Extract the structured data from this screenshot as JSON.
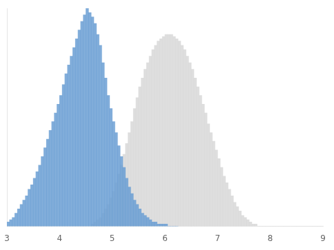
{
  "chart_data": {
    "type": "histogram",
    "series": [
      {
        "color": "#d8d8d8",
        "bins": [
          3,
          3.05,
          3.1,
          3.15,
          3.2,
          3.25,
          3.3,
          3.35,
          3.4,
          3.45,
          3.5,
          3.55,
          3.6,
          3.65,
          3.7,
          3.75,
          3.8,
          3.85,
          3.9,
          3.95,
          4,
          4.05,
          4.1,
          4.15,
          4.2,
          4.25,
          4.3,
          4.35,
          4.4,
          4.45,
          4.5,
          4.55,
          4.6,
          4.65,
          4.7,
          4.75,
          4.8,
          4.85,
          4.9,
          4.95,
          5,
          5.05,
          5.1,
          5.15,
          5.2,
          5.25,
          5.3,
          5.35,
          5.4,
          5.45,
          5.5,
          5.55,
          5.6,
          5.65,
          5.7,
          5.75,
          5.8,
          5.85,
          5.9,
          5.95,
          6,
          6.05,
          6.1,
          6.15,
          6.2,
          6.25,
          6.3,
          6.35,
          6.4,
          6.45,
          6.5,
          6.55,
          6.6,
          6.65,
          6.7,
          6.75,
          6.8,
          6.85,
          6.9,
          6.95,
          7,
          7.05,
          7.1,
          7.15,
          7.2,
          7.25,
          7.3,
          7.35,
          7.4,
          7.45,
          7.5,
          7.55,
          7.6,
          7.65,
          7.7,
          7.75,
          7.8,
          7.85,
          7.9,
          7.95,
          8,
          8.05,
          8.1,
          8.15,
          8.2,
          8.25,
          8.3,
          8.35,
          8.4,
          8.45,
          8.5,
          8.55,
          8.6,
          8.65,
          8.7,
          8.75,
          8.8,
          8.85,
          8.9,
          8.95,
          9
        ],
        "values": [
          0,
          0,
          0,
          0,
          0,
          0,
          0,
          0,
          0,
          0,
          0,
          0,
          0,
          0,
          0,
          0,
          0,
          0,
          0,
          0,
          0,
          0,
          0,
          0,
          0,
          0,
          0,
          0,
          0,
          0,
          0,
          0,
          1,
          2,
          3,
          4,
          6,
          8,
          10,
          13,
          16,
          20,
          24,
          28,
          33,
          38,
          43,
          48,
          54,
          59,
          64,
          68,
          72,
          75,
          78,
          81,
          83,
          85,
          86,
          87,
          88,
          88,
          88,
          87,
          86,
          85,
          83,
          81,
          78,
          75,
          72,
          68,
          64,
          60,
          56,
          52,
          47,
          43,
          39,
          35,
          31,
          27,
          23,
          20,
          17,
          14,
          11,
          9,
          7,
          5,
          4,
          3,
          2,
          1,
          1,
          0,
          0,
          0,
          0,
          0,
          0,
          0,
          0,
          0,
          0,
          0,
          0,
          0,
          0,
          0,
          0,
          0,
          0,
          0,
          0,
          0,
          0,
          0,
          0,
          0
        ]
      },
      {
        "color": "#6b9fd4",
        "bins": [
          3,
          3.05,
          3.1,
          3.15,
          3.2,
          3.25,
          3.3,
          3.35,
          3.4,
          3.45,
          3.5,
          3.55,
          3.6,
          3.65,
          3.7,
          3.75,
          3.8,
          3.85,
          3.9,
          3.95,
          4,
          4.05,
          4.1,
          4.15,
          4.2,
          4.25,
          4.3,
          4.35,
          4.4,
          4.45,
          4.5,
          4.55,
          4.6,
          4.65,
          4.7,
          4.75,
          4.8,
          4.85,
          4.9,
          4.95,
          5,
          5.05,
          5.1,
          5.15,
          5.2,
          5.25,
          5.3,
          5.35,
          5.4,
          5.45,
          5.5,
          5.55,
          5.6,
          5.65,
          5.7,
          5.75,
          5.8,
          5.85,
          5.9,
          5.95,
          6,
          6.05,
          6.1,
          6.15,
          6.2,
          6.25
        ],
        "values": [
          2,
          3,
          4,
          6,
          8,
          10,
          12,
          14,
          17,
          19,
          22,
          25,
          28,
          32,
          36,
          40,
          44,
          48,
          52,
          56,
          60,
          65,
          70,
          74,
          78,
          82,
          86,
          90,
          94,
          97,
          100,
          98,
          96,
          93,
          88,
          83,
          75,
          68,
          60,
          54,
          48,
          43,
          37,
          32,
          27,
          22,
          18,
          15,
          12,
          10,
          8,
          6,
          5,
          4,
          3,
          2,
          2,
          1,
          1,
          1,
          1,
          0,
          0,
          0,
          0
        ]
      }
    ],
    "xlim": [
      3,
      9
    ],
    "ylim": [
      0,
      100
    ],
    "xticks": [
      3,
      4,
      5,
      6,
      7,
      8,
      9
    ],
    "tick_labels": "x",
    "grid": false
  }
}
